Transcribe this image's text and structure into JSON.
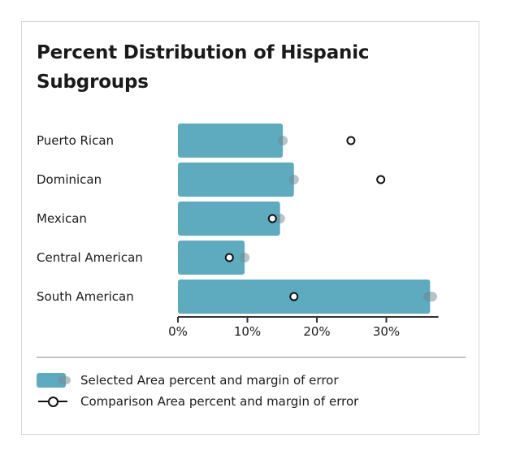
{
  "chart_data": {
    "type": "bar",
    "orientation": "horizontal",
    "title": "Percent Distribution of Hispanic Subgroups",
    "categories": [
      "Puerto Rican",
      "Dominican",
      "Mexican",
      "Central American",
      "South American"
    ],
    "series": [
      {
        "name": "Selected Area percent and margin of error",
        "values": [
          15.1,
          16.7,
          14.7,
          9.6,
          36.3
        ],
        "margin_of_error": [
          0.7,
          0.7,
          0.7,
          0.7,
          1.0
        ],
        "color": "#5eabbf"
      },
      {
        "name": "Comparison Area percent and margin of error",
        "values": [
          24.9,
          29.2,
          13.6,
          7.4,
          16.7
        ],
        "marker": "circle"
      }
    ],
    "xlabel": "",
    "ylabel": "",
    "xlim": [
      0,
      37.5
    ],
    "x_ticks": [
      0,
      10,
      20,
      30
    ],
    "x_tick_labels": [
      "0%",
      "10%",
      "20%",
      "30%"
    ],
    "grid": false,
    "legend_position": "bottom"
  },
  "legend": {
    "selected": "Selected Area percent and margin of error",
    "comparison": "Comparison Area percent and margin of error"
  }
}
